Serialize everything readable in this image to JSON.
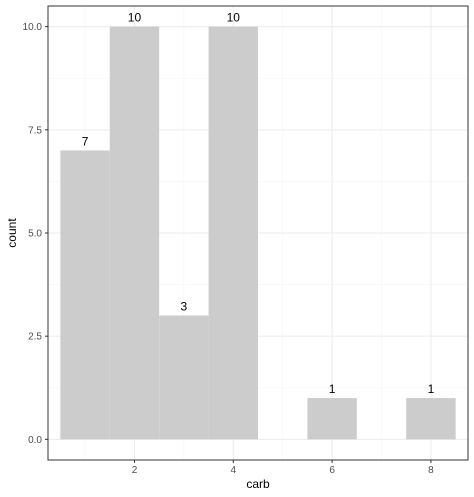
{
  "chart_data": {
    "type": "bar",
    "x": [
      1,
      2,
      3,
      4,
      6,
      8
    ],
    "values": [
      7,
      10,
      3,
      10,
      1,
      1
    ],
    "labels": [
      "7",
      "10",
      "3",
      "10",
      "1",
      "1"
    ],
    "bar_width": 1,
    "xlabel": "carb",
    "ylabel": "count",
    "xlim": [
      0.25,
      8.75
    ],
    "ylim": [
      -0.5,
      10.5
    ],
    "x_ticks": [
      2,
      4,
      6,
      8
    ],
    "x_tick_labels": [
      "2",
      "4",
      "6",
      "8"
    ],
    "y_ticks": [
      0,
      2.5,
      5,
      7.5,
      10
    ],
    "y_tick_labels": [
      "0.0",
      "2.5",
      "5.0",
      "7.5",
      "10.0"
    ],
    "grid": true,
    "theme": "bw",
    "colors": {
      "bar": "#cccccc",
      "panel_border": "#333333",
      "grid_major": "#ebebeb",
      "grid_minor": "#f5f5f5",
      "tick_text": "#4d4d4d"
    }
  }
}
